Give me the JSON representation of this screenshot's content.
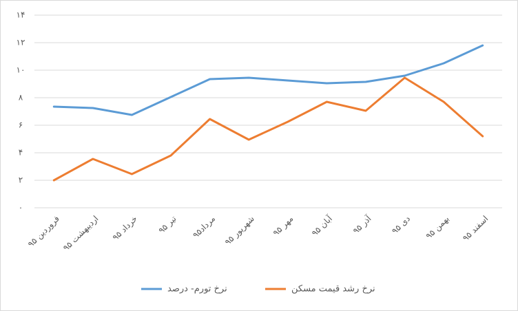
{
  "chart_data": {
    "type": "line",
    "categories": [
      "فروردین ۹۵",
      "اردیبهشت ۹۵",
      "خرداد ۹۵",
      "تیر ۹۵",
      "مرداد۹۵",
      "شهریور ۹۵",
      "مهر ۹۵",
      "آبان ۹۵",
      "آذر ۹۵",
      "دی ۹۵",
      "بهمن ۹۵",
      "اسفند ۹۵"
    ],
    "series": [
      {
        "name": "نرخ تورم- درصد",
        "color": "#5b9bd5",
        "values": [
          7.35,
          7.25,
          6.75,
          8.05,
          9.35,
          9.45,
          9.25,
          9.05,
          9.15,
          9.6,
          10.5,
          11.8
        ]
      },
      {
        "name": "نرخ رشد قیمت مسکن",
        "color": "#ed7d31",
        "values": [
          2.0,
          3.55,
          2.45,
          3.8,
          6.45,
          4.95,
          6.25,
          7.7,
          7.05,
          9.45,
          7.7,
          5.2
        ]
      }
    ],
    "ylim": [
      0,
      14
    ],
    "yticks": [
      {
        "value": 0,
        "label": "۰"
      },
      {
        "value": 2,
        "label": "۲"
      },
      {
        "value": 4,
        "label": "۴"
      },
      {
        "value": 6,
        "label": "۶"
      },
      {
        "value": 8,
        "label": "۸"
      },
      {
        "value": 10,
        "label": "۱۰"
      },
      {
        "value": 12,
        "label": "۱۲"
      },
      {
        "value": 14,
        "label": "۱۴"
      }
    ],
    "grid": true
  }
}
